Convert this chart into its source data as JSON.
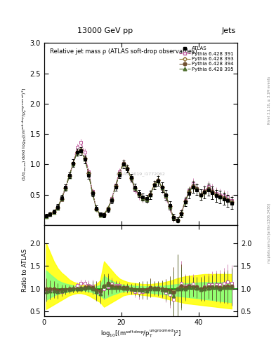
{
  "title_top": "13000 GeV pp",
  "title_right": "Jets",
  "plot_title": "Relative jet mass ρ (ATLAS soft-drop observables)",
  "ylabel_main": "(1/σ$_{resum}$) dσ/d log$_{10}$[(m$^{soft drop}$/p$_T^{ungroomed}$)$^2$]",
  "ylabel_ratio": "Ratio to ATLAS",
  "right_label_top": "Rivet 3.1.10, ≥ 3.1M events",
  "right_label_bot": "mcplots.cern.ch [arXiv:1306.3436]",
  "watermark": "ATLAS_2019_I1772062",
  "xlim": [
    0,
    50
  ],
  "ylim_main": [
    0,
    3
  ],
  "ylim_ratio": [
    0.4,
    2.4
  ],
  "yticks_main": [
    0.5,
    1.0,
    1.5,
    2.0,
    2.5,
    3.0
  ],
  "yticks_ratio": [
    0.5,
    1.0,
    1.5,
    2.0
  ],
  "xticks": [
    0,
    20,
    40
  ],
  "x_bins": [
    0.5,
    1.5,
    2.5,
    3.5,
    4.5,
    5.5,
    6.5,
    7.5,
    8.5,
    9.5,
    10.5,
    11.5,
    12.5,
    13.5,
    14.5,
    15.5,
    16.5,
    17.5,
    18.5,
    19.5,
    20.5,
    21.5,
    22.5,
    23.5,
    24.5,
    25.5,
    26.5,
    27.5,
    28.5,
    29.5,
    30.5,
    31.5,
    32.5,
    33.5,
    34.5,
    35.5,
    36.5,
    37.5,
    38.5,
    39.5,
    40.5,
    41.5,
    42.5,
    43.5,
    44.5,
    45.5,
    46.5,
    47.5,
    48.5
  ],
  "atlas_y": [
    0.15,
    0.18,
    0.22,
    0.3,
    0.45,
    0.62,
    0.82,
    1.02,
    1.2,
    1.22,
    1.08,
    0.82,
    0.52,
    0.28,
    0.18,
    0.16,
    0.25,
    0.4,
    0.62,
    0.82,
    1.0,
    0.92,
    0.78,
    0.62,
    0.52,
    0.46,
    0.44,
    0.5,
    0.66,
    0.73,
    0.62,
    0.5,
    0.32,
    0.13,
    0.08,
    0.18,
    0.38,
    0.52,
    0.62,
    0.58,
    0.5,
    0.54,
    0.58,
    0.53,
    0.48,
    0.46,
    0.43,
    0.4,
    0.36
  ],
  "atlas_err": [
    0.03,
    0.03,
    0.03,
    0.04,
    0.04,
    0.05,
    0.05,
    0.06,
    0.06,
    0.06,
    0.06,
    0.06,
    0.05,
    0.04,
    0.03,
    0.03,
    0.04,
    0.04,
    0.05,
    0.05,
    0.06,
    0.06,
    0.06,
    0.06,
    0.06,
    0.06,
    0.06,
    0.07,
    0.07,
    0.08,
    0.08,
    0.08,
    0.07,
    0.05,
    0.04,
    0.06,
    0.07,
    0.08,
    0.09,
    0.09,
    0.09,
    0.1,
    0.1,
    0.1,
    0.1,
    0.1,
    0.1,
    0.1,
    0.1
  ],
  "p391_y": [
    0.14,
    0.17,
    0.21,
    0.28,
    0.42,
    0.6,
    0.8,
    1.02,
    1.28,
    1.36,
    1.2,
    0.88,
    0.55,
    0.26,
    0.16,
    0.16,
    0.26,
    0.44,
    0.66,
    0.88,
    1.02,
    0.92,
    0.76,
    0.58,
    0.48,
    0.43,
    0.42,
    0.5,
    0.66,
    0.73,
    0.6,
    0.46,
    0.28,
    0.1,
    0.08,
    0.2,
    0.4,
    0.56,
    0.68,
    0.6,
    0.5,
    0.56,
    0.63,
    0.58,
    0.52,
    0.5,
    0.48,
    0.46,
    0.4
  ],
  "p393_y": [
    0.15,
    0.18,
    0.22,
    0.29,
    0.43,
    0.61,
    0.81,
    1.02,
    1.2,
    1.23,
    1.1,
    0.85,
    0.53,
    0.27,
    0.17,
    0.17,
    0.27,
    0.42,
    0.64,
    0.84,
    1.01,
    0.93,
    0.77,
    0.61,
    0.51,
    0.45,
    0.43,
    0.51,
    0.67,
    0.74,
    0.62,
    0.49,
    0.31,
    0.12,
    0.08,
    0.19,
    0.39,
    0.54,
    0.64,
    0.59,
    0.49,
    0.54,
    0.59,
    0.54,
    0.49,
    0.47,
    0.44,
    0.41,
    0.37
  ],
  "p394_y": [
    0.15,
    0.18,
    0.22,
    0.29,
    0.44,
    0.61,
    0.82,
    1.02,
    1.2,
    1.23,
    1.1,
    0.85,
    0.53,
    0.27,
    0.17,
    0.17,
    0.28,
    0.42,
    0.65,
    0.85,
    1.02,
    0.94,
    0.78,
    0.61,
    0.51,
    0.45,
    0.43,
    0.51,
    0.67,
    0.74,
    0.62,
    0.49,
    0.31,
    0.12,
    0.08,
    0.19,
    0.39,
    0.55,
    0.65,
    0.6,
    0.5,
    0.55,
    0.6,
    0.55,
    0.5,
    0.47,
    0.45,
    0.42,
    0.38
  ],
  "p395_y": [
    0.14,
    0.17,
    0.21,
    0.28,
    0.43,
    0.6,
    0.8,
    1.01,
    1.19,
    1.22,
    1.09,
    0.84,
    0.52,
    0.26,
    0.16,
    0.17,
    0.27,
    0.41,
    0.64,
    0.84,
    1.01,
    0.93,
    0.77,
    0.61,
    0.51,
    0.44,
    0.42,
    0.5,
    0.66,
    0.73,
    0.61,
    0.48,
    0.3,
    0.11,
    0.08,
    0.18,
    0.38,
    0.54,
    0.64,
    0.59,
    0.49,
    0.54,
    0.59,
    0.54,
    0.49,
    0.46,
    0.44,
    0.41,
    0.37
  ],
  "p391_err": [
    0.015,
    0.015,
    0.02,
    0.025,
    0.03,
    0.035,
    0.04,
    0.05,
    0.055,
    0.06,
    0.06,
    0.055,
    0.05,
    0.04,
    0.03,
    0.025,
    0.03,
    0.04,
    0.05,
    0.055,
    0.06,
    0.06,
    0.06,
    0.06,
    0.06,
    0.06,
    0.06,
    0.07,
    0.07,
    0.08,
    0.08,
    0.08,
    0.07,
    0.055,
    0.045,
    0.06,
    0.07,
    0.08,
    0.09,
    0.09,
    0.09,
    0.1,
    0.1,
    0.1,
    0.1,
    0.1,
    0.1,
    0.1,
    0.1
  ],
  "p393_err": [
    0.015,
    0.015,
    0.02,
    0.025,
    0.03,
    0.035,
    0.04,
    0.05,
    0.055,
    0.06,
    0.06,
    0.055,
    0.05,
    0.04,
    0.03,
    0.025,
    0.03,
    0.04,
    0.05,
    0.055,
    0.06,
    0.06,
    0.06,
    0.06,
    0.06,
    0.06,
    0.06,
    0.07,
    0.07,
    0.08,
    0.08,
    0.08,
    0.07,
    0.055,
    0.045,
    0.06,
    0.07,
    0.08,
    0.09,
    0.09,
    0.09,
    0.1,
    0.1,
    0.1,
    0.1,
    0.1,
    0.1,
    0.1,
    0.1
  ],
  "p394_err": [
    0.015,
    0.015,
    0.02,
    0.025,
    0.03,
    0.035,
    0.04,
    0.05,
    0.055,
    0.06,
    0.06,
    0.055,
    0.05,
    0.04,
    0.03,
    0.025,
    0.03,
    0.04,
    0.05,
    0.055,
    0.06,
    0.06,
    0.06,
    0.06,
    0.06,
    0.06,
    0.06,
    0.07,
    0.07,
    0.08,
    0.08,
    0.08,
    0.07,
    0.055,
    0.045,
    0.06,
    0.07,
    0.08,
    0.09,
    0.09,
    0.09,
    0.1,
    0.1,
    0.1,
    0.1,
    0.1,
    0.1,
    0.1,
    0.1
  ],
  "p395_err": [
    0.015,
    0.015,
    0.02,
    0.025,
    0.03,
    0.035,
    0.04,
    0.05,
    0.055,
    0.06,
    0.06,
    0.055,
    0.05,
    0.04,
    0.03,
    0.025,
    0.03,
    0.04,
    0.05,
    0.055,
    0.06,
    0.06,
    0.06,
    0.06,
    0.06,
    0.06,
    0.06,
    0.07,
    0.07,
    0.08,
    0.08,
    0.08,
    0.07,
    0.055,
    0.045,
    0.06,
    0.07,
    0.08,
    0.09,
    0.09,
    0.09,
    0.1,
    0.1,
    0.1,
    0.1,
    0.1,
    0.1,
    0.1,
    0.1
  ],
  "color_391": "#c060a0",
  "color_393": "#907030",
  "color_394": "#705030",
  "color_395": "#507030",
  "color_atlas": "#000000",
  "band_yellow_lo": [
    0.55,
    0.6,
    0.65,
    0.7,
    0.75,
    0.8,
    0.85,
    0.88,
    0.9,
    0.9,
    0.88,
    0.85,
    0.8,
    0.75,
    0.7,
    0.6,
    0.65,
    0.7,
    0.75,
    0.8,
    0.85,
    0.87,
    0.88,
    0.88,
    0.87,
    0.86,
    0.85,
    0.84,
    0.83,
    0.82,
    0.8,
    0.78,
    0.76,
    0.74,
    0.72,
    0.7,
    0.68,
    0.67,
    0.66,
    0.65,
    0.64,
    0.63,
    0.62,
    0.61,
    0.6,
    0.59,
    0.58,
    0.57,
    0.56
  ],
  "band_yellow_hi": [
    2.0,
    1.8,
    1.6,
    1.45,
    1.35,
    1.28,
    1.2,
    1.15,
    1.12,
    1.1,
    1.08,
    1.07,
    1.08,
    1.1,
    1.18,
    1.6,
    1.5,
    1.4,
    1.3,
    1.22,
    1.18,
    1.15,
    1.13,
    1.12,
    1.11,
    1.1,
    1.1,
    1.1,
    1.11,
    1.12,
    1.13,
    1.15,
    1.17,
    1.2,
    1.23,
    1.25,
    1.27,
    1.28,
    1.29,
    1.3,
    1.31,
    1.32,
    1.32,
    1.32,
    1.32,
    1.32,
    1.32,
    1.32,
    1.32
  ],
  "band_green_lo": [
    0.75,
    0.8,
    0.85,
    0.88,
    0.9,
    0.92,
    0.94,
    0.96,
    0.97,
    0.97,
    0.96,
    0.94,
    0.92,
    0.88,
    0.85,
    0.78,
    0.82,
    0.86,
    0.89,
    0.92,
    0.94,
    0.95,
    0.95,
    0.95,
    0.94,
    0.93,
    0.92,
    0.91,
    0.9,
    0.89,
    0.88,
    0.87,
    0.86,
    0.85,
    0.84,
    0.83,
    0.82,
    0.81,
    0.8,
    0.79,
    0.78,
    0.77,
    0.76,
    0.75,
    0.74,
    0.73,
    0.72,
    0.71,
    0.7
  ],
  "band_green_hi": [
    1.4,
    1.32,
    1.25,
    1.18,
    1.14,
    1.11,
    1.09,
    1.07,
    1.06,
    1.05,
    1.04,
    1.04,
    1.04,
    1.05,
    1.08,
    1.28,
    1.22,
    1.17,
    1.13,
    1.1,
    1.08,
    1.07,
    1.07,
    1.06,
    1.06,
    1.05,
    1.05,
    1.05,
    1.05,
    1.06,
    1.06,
    1.07,
    1.08,
    1.09,
    1.1,
    1.11,
    1.12,
    1.12,
    1.13,
    1.13,
    1.14,
    1.14,
    1.14,
    1.14,
    1.14,
    1.14,
    1.14,
    1.14,
    1.14
  ]
}
